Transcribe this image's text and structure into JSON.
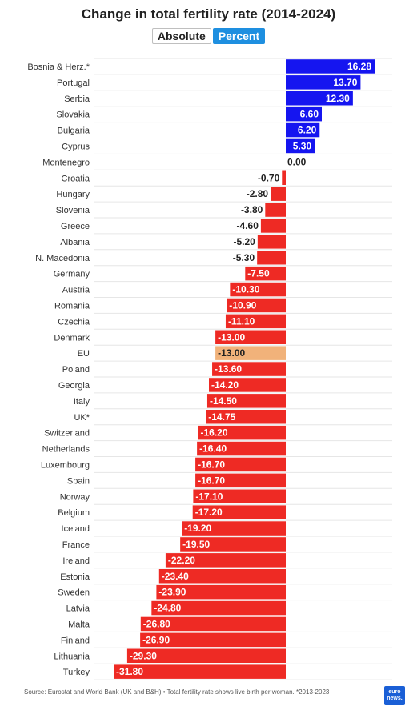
{
  "title": "Change in total fertility rate (2014-2024)",
  "toggle": {
    "absolute_label": "Absolute",
    "percent_label": "Percent",
    "selected": "Percent"
  },
  "footer": {
    "source": "Source: Eurostat and World Bank (UK and B&H) • Total fertility rate shows live birth per woman. *2013-2023"
  },
  "logo": {
    "line1": "euro",
    "line2": "news."
  },
  "colors": {
    "positive": "#1515f0",
    "negative": "#ee2a24",
    "highlight": "#f1b27a",
    "grid": "#e6e6e6"
  },
  "chart_data": {
    "type": "bar",
    "orientation": "horizontal",
    "categories": [
      "Bosnia & Herz.*",
      "Portugal",
      "Serbia",
      "Slovakia",
      "Bulgaria",
      "Cyprus",
      "Montenegro",
      "Croatia",
      "Hungary",
      "Slovenia",
      "Greece",
      "Albania",
      "N. Macedonia",
      "Germany",
      "Austria",
      "Romania",
      "Czechia",
      "Denmark",
      "EU",
      "Poland",
      "Georgia",
      "Italy",
      "UK*",
      "Switzerland",
      "Netherlands",
      "Luxembourg",
      "Spain",
      "Norway",
      "Belgium",
      "Iceland",
      "France",
      "Ireland",
      "Estonia",
      "Sweden",
      "Latvia",
      "Malta",
      "Finland",
      "Lithuania",
      "Turkey"
    ],
    "values": [
      16.28,
      13.7,
      12.3,
      6.6,
      6.2,
      5.3,
      0.0,
      -0.7,
      -2.8,
      -3.8,
      -4.6,
      -5.2,
      -5.3,
      -7.5,
      -10.3,
      -10.9,
      -11.1,
      -13.0,
      -13.0,
      -13.6,
      -14.2,
      -14.5,
      -14.75,
      -16.2,
      -16.4,
      -16.7,
      -16.7,
      -17.1,
      -17.2,
      -19.2,
      -19.5,
      -22.2,
      -23.4,
      -23.9,
      -24.8,
      -26.8,
      -26.9,
      -29.3,
      -31.8
    ],
    "labels": [
      "16.28",
      "13.70",
      "12.30",
      "6.60",
      "6.20",
      "5.30",
      "0.00",
      "-0.70",
      "-2.80",
      "-3.80",
      "-4.60",
      "-5.20",
      "-5.30",
      "-7.50",
      "-10.30",
      "-10.90",
      "-11.10",
      "-13.00",
      "-13.00",
      "-13.60",
      "-14.20",
      "-14.50",
      "-14.75",
      "-16.20",
      "-16.40",
      "-16.70",
      "-16.70",
      "-17.10",
      "-17.20",
      "-19.20",
      "-19.50",
      "-22.20",
      "-23.40",
      "-23.90",
      "-24.80",
      "-26.80",
      "-26.90",
      "-29.30",
      "-31.80"
    ],
    "highlight": "EU",
    "xlim": [
      -31.8,
      16.28
    ],
    "grid": true,
    "legend": "none"
  }
}
